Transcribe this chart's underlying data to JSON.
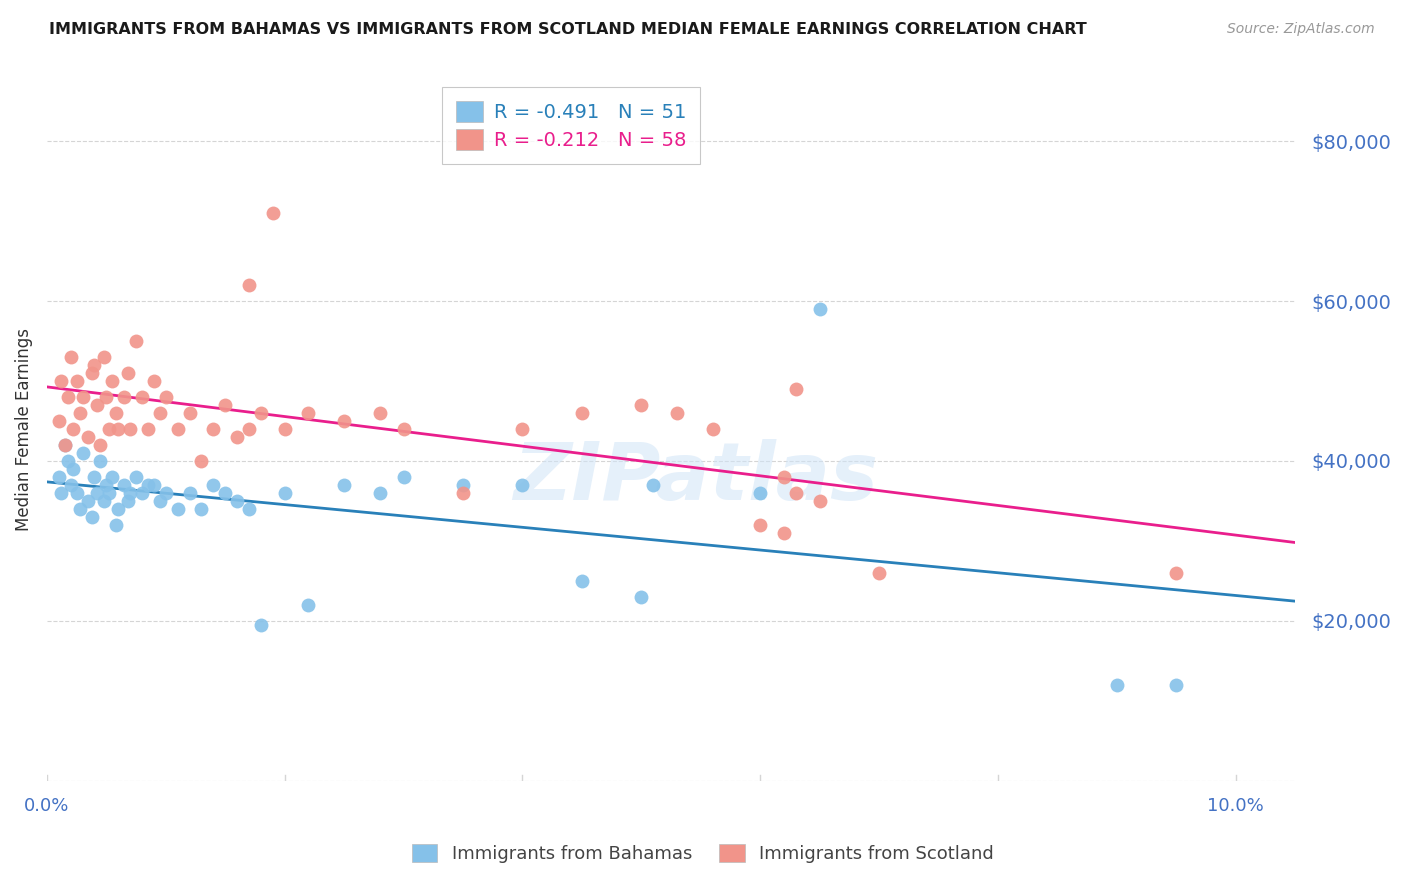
{
  "title": "IMMIGRANTS FROM BAHAMAS VS IMMIGRANTS FROM SCOTLAND MEDIAN FEMALE EARNINGS CORRELATION CHART",
  "source": "Source: ZipAtlas.com",
  "ylabel": "Median Female Earnings",
  "ymin": 0,
  "ymax": 88000,
  "xmin": 0.0,
  "xmax": 0.105,
  "watermark": "ZIPatlas",
  "series": [
    {
      "name": "Immigrants from Bahamas",
      "R": -0.491,
      "N": 51,
      "color": "#85c1e9",
      "line_color": "#2980b9",
      "x": [
        0.001,
        0.0012,
        0.0015,
        0.0018,
        0.002,
        0.0022,
        0.0025,
        0.0028,
        0.003,
        0.0035,
        0.0038,
        0.004,
        0.0042,
        0.0045,
        0.0048,
        0.005,
        0.0052,
        0.0055,
        0.0058,
        0.006,
        0.0065,
        0.0068,
        0.007,
        0.0075,
        0.008,
        0.0085,
        0.009,
        0.0095,
        0.01,
        0.011,
        0.012,
        0.013,
        0.014,
        0.015,
        0.016,
        0.017,
        0.018,
        0.02,
        0.022,
        0.025,
        0.028,
        0.03,
        0.035,
        0.04,
        0.045,
        0.05,
        0.051,
        0.06,
        0.065,
        0.09,
        0.095
      ],
      "y": [
        38000,
        36000,
        42000,
        40000,
        37000,
        39000,
        36000,
        34000,
        41000,
        35000,
        33000,
        38000,
        36000,
        40000,
        35000,
        37000,
        36000,
        38000,
        32000,
        34000,
        37000,
        35000,
        36000,
        38000,
        36000,
        37000,
        37000,
        35000,
        36000,
        34000,
        36000,
        34000,
        37000,
        36000,
        35000,
        34000,
        19500,
        36000,
        22000,
        37000,
        36000,
        38000,
        37000,
        37000,
        25000,
        23000,
        37000,
        36000,
        59000,
        12000,
        12000
      ]
    },
    {
      "name": "Immigrants from Scotland",
      "R": -0.212,
      "N": 58,
      "color": "#f1948a",
      "line_color": "#e91e8c",
      "x": [
        0.001,
        0.0012,
        0.0015,
        0.0018,
        0.002,
        0.0022,
        0.0025,
        0.0028,
        0.003,
        0.0035,
        0.0038,
        0.004,
        0.0042,
        0.0045,
        0.0048,
        0.005,
        0.0052,
        0.0055,
        0.0058,
        0.006,
        0.0065,
        0.0068,
        0.007,
        0.0075,
        0.008,
        0.0085,
        0.009,
        0.0095,
        0.01,
        0.011,
        0.012,
        0.013,
        0.014,
        0.015,
        0.016,
        0.017,
        0.018,
        0.02,
        0.022,
        0.025,
        0.028,
        0.03,
        0.035,
        0.04,
        0.045,
        0.05,
        0.053,
        0.06,
        0.056,
        0.062,
        0.063,
        0.063,
        0.065,
        0.017,
        0.019,
        0.062,
        0.07,
        0.095
      ],
      "y": [
        45000,
        50000,
        42000,
        48000,
        53000,
        44000,
        50000,
        46000,
        48000,
        43000,
        51000,
        52000,
        47000,
        42000,
        53000,
        48000,
        44000,
        50000,
        46000,
        44000,
        48000,
        51000,
        44000,
        55000,
        48000,
        44000,
        50000,
        46000,
        48000,
        44000,
        46000,
        40000,
        44000,
        47000,
        43000,
        44000,
        46000,
        44000,
        46000,
        45000,
        46000,
        44000,
        36000,
        44000,
        46000,
        47000,
        46000,
        32000,
        44000,
        38000,
        49000,
        36000,
        35000,
        62000,
        71000,
        31000,
        26000,
        26000
      ]
    }
  ],
  "yticks": [
    0,
    20000,
    40000,
    60000,
    80000
  ],
  "ytick_labels": [
    "",
    "$20,000",
    "$40,000",
    "$60,000",
    "$80,000"
  ],
  "xtick_positions": [
    0.0,
    0.02,
    0.04,
    0.06,
    0.08,
    0.1
  ],
  "xtick_labels": [
    "0.0%",
    "",
    "",
    "",
    "",
    "10.0%"
  ],
  "title_color": "#1a1a1a",
  "source_color": "#999999",
  "ylabel_color": "#333333",
  "ytick_color": "#4472c4",
  "xtick_color": "#4472c4",
  "grid_color": "#d5d5d5",
  "background_color": "#ffffff"
}
